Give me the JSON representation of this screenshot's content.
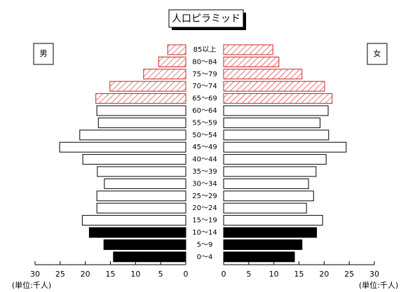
{
  "chart_data": {
    "type": "pyramid",
    "title": "人口ピラミッド",
    "unit_label": "(単位:千人)",
    "categories": [
      "85以上",
      "80〜84",
      "75〜79",
      "70〜74",
      "65〜69",
      "60〜64",
      "55〜59",
      "50〜54",
      "45〜49",
      "40〜44",
      "35〜39",
      "30〜34",
      "25〜29",
      "20〜24",
      "15〜19",
      "10〜14",
      "5〜9",
      "0〜4"
    ],
    "bar_styles": [
      "hatch",
      "hatch",
      "hatch",
      "hatch",
      "hatch",
      "white",
      "white",
      "white",
      "white",
      "white",
      "white",
      "white",
      "white",
      "white",
      "white",
      "black",
      "black",
      "black"
    ],
    "series": [
      {
        "name": "男",
        "values": [
          3.6,
          5.4,
          8.4,
          15.1,
          17.9,
          17.7,
          17.4,
          21.1,
          25.1,
          20.5,
          17.6,
          16.2,
          17.7,
          17.7,
          20.6,
          19.2,
          16.3,
          14.4
        ]
      },
      {
        "name": "女",
        "values": [
          9.8,
          11.0,
          15.6,
          20.1,
          21.6,
          20.8,
          19.2,
          20.9,
          24.4,
          20.4,
          18.4,
          16.9,
          17.9,
          16.5,
          19.7,
          18.5,
          15.6,
          14.1
        ]
      }
    ],
    "xlim": [
      0,
      30
    ],
    "xticks": [
      0,
      5,
      10,
      15,
      20,
      25,
      30
    ],
    "hatch_color": "#d02020"
  }
}
